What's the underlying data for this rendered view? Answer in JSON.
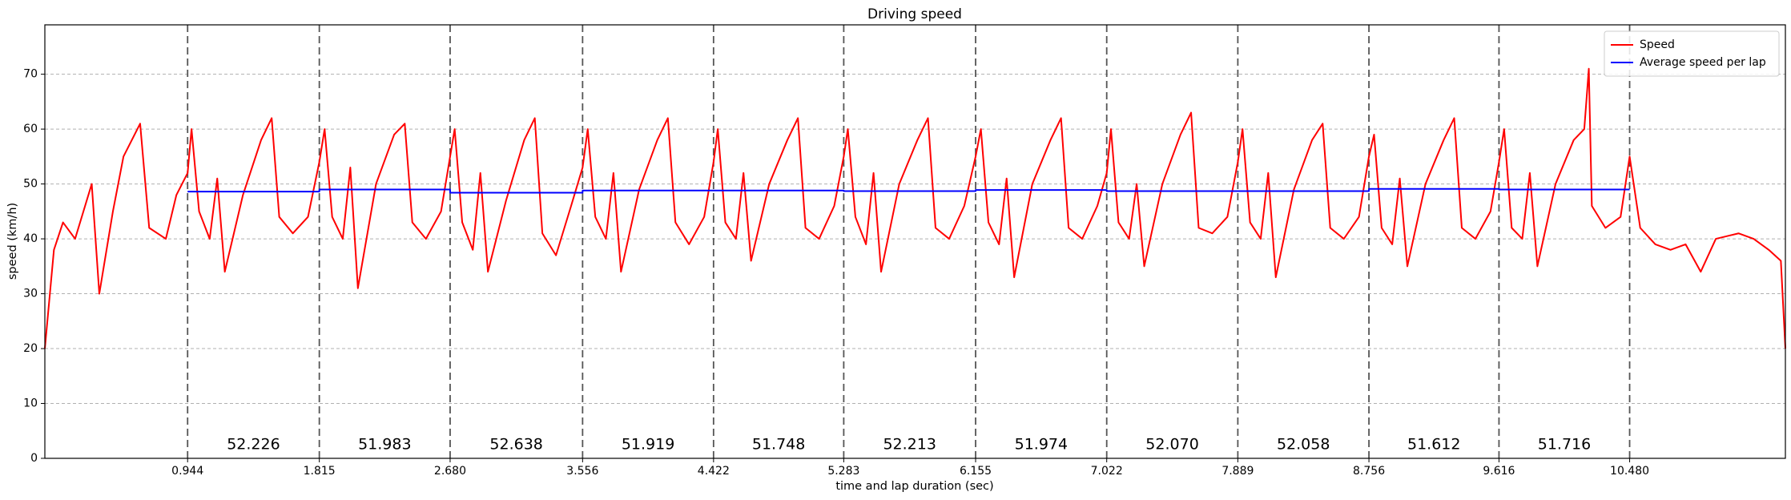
{
  "chart_data": {
    "type": "line",
    "title": "Driving speed",
    "x_label": "time and lap duration (sec)",
    "y_label": "speed (km/h)",
    "xlim": [
      0,
      11.51
    ],
    "ylim": [
      0,
      79
    ],
    "xticks": [
      0.944,
      1.815,
      {
        "value": 2.68,
        "label": "2.680"
      },
      3.556,
      4.422,
      5.283,
      6.155,
      7.022,
      7.889,
      8.756,
      9.616,
      {
        "value": 10.48,
        "label": "10.480"
      }
    ],
    "yticks": [
      0,
      10,
      20,
      30,
      40,
      50,
      60,
      70
    ],
    "grid": true,
    "legend": "upper right",
    "lap_duration_labels": [
      "52.226",
      "51.983",
      "52.638",
      "51.919",
      "51.748",
      "52.213",
      "51.974",
      "52.070",
      "52.058",
      "51.612",
      "51.716"
    ],
    "series": [
      {
        "name": "Speed",
        "color": "#ff0000",
        "x": [
          0,
          0.06,
          0.12,
          0.2,
          0.31,
          0.36,
          0.45,
          0.52,
          0.63,
          0.69,
          0.8,
          0.87,
          0.944,
          0.97,
          1.02,
          1.09,
          1.14,
          1.19,
          1.31,
          1.43,
          1.5,
          1.55,
          1.64,
          1.74,
          1.815,
          1.85,
          1.9,
          1.97,
          2.02,
          2.07,
          2.19,
          2.31,
          2.38,
          2.43,
          2.52,
          2.62,
          2.68,
          2.71,
          2.76,
          2.83,
          2.88,
          2.93,
          3.05,
          3.17,
          3.24,
          3.29,
          3.38,
          3.48,
          3.556,
          3.59,
          3.64,
          3.71,
          3.76,
          3.81,
          3.93,
          4.05,
          4.12,
          4.17,
          4.26,
          4.36,
          4.422,
          4.45,
          4.5,
          4.57,
          4.62,
          4.67,
          4.79,
          4.91,
          4.98,
          5.03,
          5.12,
          5.22,
          5.283,
          5.31,
          5.36,
          5.43,
          5.48,
          5.53,
          5.65,
          5.77,
          5.84,
          5.89,
          5.98,
          6.08,
          6.155,
          6.19,
          6.24,
          6.31,
          6.36,
          6.41,
          6.53,
          6.65,
          6.72,
          6.77,
          6.86,
          6.96,
          7.022,
          7.05,
          7.1,
          7.17,
          7.22,
          7.27,
          7.39,
          7.51,
          7.58,
          7.63,
          7.72,
          7.82,
          7.889,
          7.92,
          7.97,
          8.04,
          8.09,
          8.14,
          8.26,
          8.38,
          8.45,
          8.5,
          8.59,
          8.69,
          8.756,
          8.79,
          8.84,
          8.91,
          8.96,
          9.01,
          9.13,
          9.25,
          9.32,
          9.37,
          9.46,
          9.56,
          9.616,
          9.65,
          9.7,
          9.77,
          9.82,
          9.87,
          9.99,
          10.11,
          10.18,
          10.21,
          10.23,
          10.32,
          10.42,
          10.48,
          10.55,
          10.65,
          10.75,
          10.85,
          10.95,
          11.05,
          11.2,
          11.3,
          11.4,
          11.48,
          11.51
        ],
        "values": [
          20,
          38,
          43,
          40,
          50,
          30,
          45,
          55,
          61,
          42,
          40,
          48,
          52,
          60,
          45,
          40,
          51,
          34,
          48,
          58,
          62,
          44,
          41,
          44,
          54,
          60,
          44,
          40,
          53,
          31,
          50,
          59,
          61,
          43,
          40,
          45,
          55,
          60,
          43,
          38,
          52,
          34,
          47,
          58,
          62,
          41,
          37,
          46,
          53,
          60,
          44,
          40,
          52,
          34,
          49,
          58,
          62,
          43,
          39,
          44,
          54,
          60,
          43,
          40,
          52,
          36,
          50,
          58,
          62,
          42,
          40,
          46,
          55,
          60,
          44,
          39,
          52,
          34,
          50,
          58,
          62,
          42,
          40,
          46,
          55,
          60,
          43,
          39,
          51,
          33,
          50,
          58,
          62,
          42,
          40,
          46,
          52,
          60,
          43,
          40,
          50,
          35,
          50,
          59,
          63,
          42,
          41,
          44,
          54,
          60,
          43,
          40,
          52,
          33,
          49,
          58,
          61,
          42,
          40,
          44,
          55,
          59,
          42,
          39,
          51,
          35,
          50,
          58,
          62,
          42,
          40,
          45,
          54,
          60,
          42,
          40,
          52,
          35,
          50,
          58,
          60,
          71,
          46,
          42,
          44,
          55,
          42,
          39,
          38,
          39,
          34,
          40,
          41,
          40,
          38,
          36,
          20
        ]
      },
      {
        "name": "Average speed per lap",
        "color": "#0000ff",
        "x": [
          0.944,
          1.815,
          1.815,
          2.68,
          2.68,
          3.556,
          3.556,
          4.422,
          4.422,
          5.283,
          5.283,
          6.155,
          6.155,
          7.022,
          7.022,
          7.889,
          7.889,
          8.756,
          8.756,
          9.616,
          9.616,
          10.48
        ],
        "values": [
          48.6,
          48.6,
          49.0,
          49.0,
          48.4,
          48.4,
          48.8,
          48.8,
          48.8,
          48.8,
          48.7,
          48.7,
          48.9,
          48.9,
          48.7,
          48.7,
          48.7,
          48.7,
          49.1,
          49.1,
          49.0,
          49.0
        ]
      }
    ]
  }
}
